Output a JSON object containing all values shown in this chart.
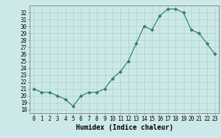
{
  "x": [
    0,
    1,
    2,
    3,
    4,
    5,
    6,
    7,
    8,
    9,
    10,
    11,
    12,
    13,
    14,
    15,
    16,
    17,
    18,
    19,
    20,
    21,
    22,
    23
  ],
  "y": [
    21.0,
    20.5,
    20.5,
    20.0,
    19.5,
    18.5,
    20.0,
    20.5,
    20.5,
    21.0,
    22.5,
    23.5,
    25.0,
    27.5,
    30.0,
    29.5,
    31.5,
    32.5,
    32.5,
    32.0,
    29.5,
    29.0,
    27.5,
    26.0
  ],
  "line_color": "#2e7d6e",
  "marker": "D",
  "marker_size": 2.5,
  "bg_color": "#cce8e8",
  "grid_color": "#aad0d0",
  "xlabel": "Humidex (Indice chaleur)",
  "ylabel": "",
  "xlim": [
    -0.5,
    23.5
  ],
  "ylim": [
    17.5,
    33.0
  ],
  "yticks": [
    18,
    19,
    20,
    21,
    22,
    23,
    24,
    25,
    26,
    27,
    28,
    29,
    30,
    31,
    32
  ],
  "xticks": [
    0,
    1,
    2,
    3,
    4,
    5,
    6,
    7,
    8,
    9,
    10,
    11,
    12,
    13,
    14,
    15,
    16,
    17,
    18,
    19,
    20,
    21,
    22,
    23
  ],
  "tick_fontsize": 5.5,
  "xlabel_fontsize": 7,
  "axis_color": "#444444",
  "spine_color": "#888888"
}
